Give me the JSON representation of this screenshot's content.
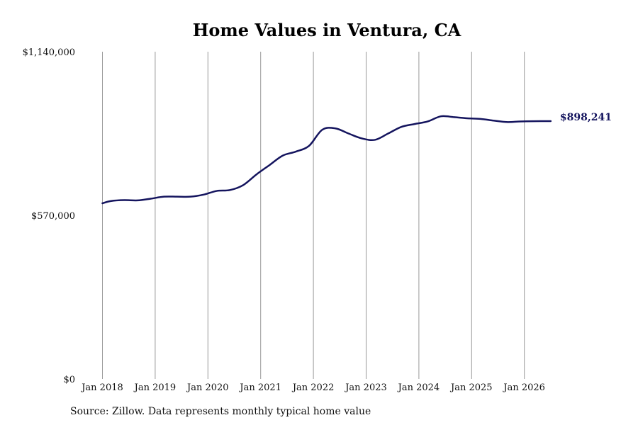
{
  "chart_data": {
    "type": "line",
    "title": "Home Values in Ventura, CA",
    "xlabel": "",
    "ylabel": "",
    "ylim": [
      0,
      1140000
    ],
    "yticks": [
      {
        "value": 0,
        "label": "$0"
      },
      {
        "value": 570000,
        "label": "$570,000"
      },
      {
        "value": 1140000,
        "label": "$1,140,000"
      }
    ],
    "xticks": [
      "Jan 2018",
      "Jan 2019",
      "Jan 2020",
      "Jan 2021",
      "Jan 2022",
      "Jan 2023",
      "Jan 2024",
      "Jan 2025",
      "Jan 2026"
    ],
    "xrange": [
      "2018-01",
      "2026-07"
    ],
    "grid": "vertical",
    "series": [
      {
        "color": "#14145e",
        "points": [
          {
            "x": "2018-01",
            "y": 612000
          },
          {
            "x": "2018-03",
            "y": 620000
          },
          {
            "x": "2018-06",
            "y": 623000
          },
          {
            "x": "2018-09",
            "y": 622000
          },
          {
            "x": "2018-12",
            "y": 628000
          },
          {
            "x": "2019-03",
            "y": 635000
          },
          {
            "x": "2019-06",
            "y": 635000
          },
          {
            "x": "2019-09",
            "y": 635000
          },
          {
            "x": "2019-12",
            "y": 642000
          },
          {
            "x": "2020-03",
            "y": 655000
          },
          {
            "x": "2020-06",
            "y": 658000
          },
          {
            "x": "2020-09",
            "y": 675000
          },
          {
            "x": "2020-12",
            "y": 712000
          },
          {
            "x": "2021-03",
            "y": 745000
          },
          {
            "x": "2021-06",
            "y": 778000
          },
          {
            "x": "2021-09",
            "y": 792000
          },
          {
            "x": "2021-12",
            "y": 812000
          },
          {
            "x": "2022-03",
            "y": 868000
          },
          {
            "x": "2022-06",
            "y": 873000
          },
          {
            "x": "2022-09",
            "y": 855000
          },
          {
            "x": "2022-12",
            "y": 838000
          },
          {
            "x": "2023-03",
            "y": 833000
          },
          {
            "x": "2023-06",
            "y": 855000
          },
          {
            "x": "2023-09",
            "y": 878000
          },
          {
            "x": "2023-12",
            "y": 888000
          },
          {
            "x": "2024-03",
            "y": 897000
          },
          {
            "x": "2024-06",
            "y": 915000
          },
          {
            "x": "2024-09",
            "y": 912000
          },
          {
            "x": "2024-12",
            "y": 908000
          },
          {
            "x": "2025-03",
            "y": 906000
          },
          {
            "x": "2025-06",
            "y": 900000
          },
          {
            "x": "2025-09",
            "y": 895000
          },
          {
            "x": "2025-12",
            "y": 897000
          },
          {
            "x": "2026-03",
            "y": 898000
          },
          {
            "x": "2026-07",
            "y": 898241
          }
        ]
      }
    ],
    "end_label": "$898,241"
  },
  "footer": {
    "source": "Source: Zillow. Data represents monthly typical home value"
  }
}
